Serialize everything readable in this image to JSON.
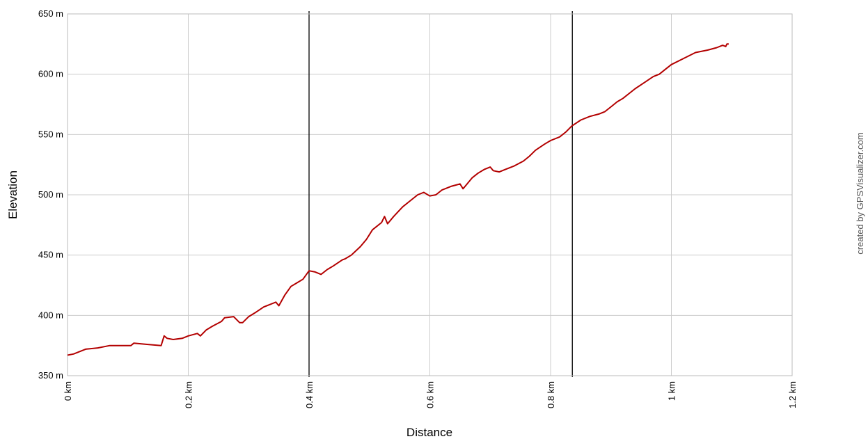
{
  "chart_data": {
    "type": "line",
    "xlabel": "Distance",
    "ylabel": "Elevation",
    "xlim": [
      0,
      1.2
    ],
    "ylim": [
      350,
      650
    ],
    "grid": true,
    "x_ticks": [
      {
        "value": 0,
        "label": "0 km"
      },
      {
        "value": 0.2,
        "label": "0.2 km"
      },
      {
        "value": 0.4,
        "label": "0.4 km"
      },
      {
        "value": 0.6,
        "label": "0.6 km"
      },
      {
        "value": 0.8,
        "label": "0.8 km"
      },
      {
        "value": 1.0,
        "label": "1 km"
      },
      {
        "value": 1.2,
        "label": "1.2 km"
      }
    ],
    "y_ticks": [
      {
        "value": 350,
        "label": "350 m"
      },
      {
        "value": 400,
        "label": "400 m"
      },
      {
        "value": 450,
        "label": "450 m"
      },
      {
        "value": 500,
        "label": "500 m"
      },
      {
        "value": 550,
        "label": "550 m"
      },
      {
        "value": 600,
        "label": "600 m"
      },
      {
        "value": 650,
        "label": "650 m"
      }
    ],
    "markers_x": [
      0.4,
      0.836
    ],
    "series": [
      {
        "color": "#b30000",
        "x": [
          0,
          0.01,
          0.03,
          0.05,
          0.07,
          0.09,
          0.105,
          0.11,
          0.13,
          0.155,
          0.16,
          0.165,
          0.175,
          0.19,
          0.2,
          0.215,
          0.22,
          0.23,
          0.24,
          0.255,
          0.26,
          0.275,
          0.285,
          0.29,
          0.3,
          0.31,
          0.325,
          0.34,
          0.345,
          0.35,
          0.36,
          0.37,
          0.38,
          0.39,
          0.4,
          0.41,
          0.42,
          0.43,
          0.44,
          0.455,
          0.46,
          0.47,
          0.485,
          0.495,
          0.505,
          0.52,
          0.525,
          0.53,
          0.54,
          0.555,
          0.565,
          0.58,
          0.59,
          0.6,
          0.61,
          0.62,
          0.635,
          0.65,
          0.655,
          0.66,
          0.67,
          0.68,
          0.69,
          0.7,
          0.705,
          0.715,
          0.725,
          0.74,
          0.755,
          0.765,
          0.775,
          0.79,
          0.8,
          0.815,
          0.825,
          0.835,
          0.85,
          0.865,
          0.88,
          0.89,
          0.9,
          0.91,
          0.92,
          0.93,
          0.94,
          0.955,
          0.97,
          0.98,
          0.99,
          1.0,
          1.02,
          1.04,
          1.06,
          1.075,
          1.085,
          1.09,
          1.092,
          1.095
        ],
        "values": [
          367,
          368,
          372,
          373,
          375,
          375,
          375,
          377,
          376,
          375,
          383,
          381,
          380,
          381,
          383,
          385,
          383,
          388,
          391,
          395,
          398,
          399,
          394,
          394,
          399,
          402,
          407,
          410,
          411,
          408,
          417,
          424,
          427,
          430,
          437,
          436,
          434,
          438,
          441,
          446,
          447,
          450,
          457,
          463,
          471,
          477,
          482,
          476,
          482,
          490,
          494,
          500,
          502,
          499,
          500,
          504,
          507,
          509,
          505,
          508,
          514,
          518,
          521,
          523,
          520,
          519,
          521,
          524,
          528,
          532,
          537,
          542,
          545,
          548,
          552,
          557,
          562,
          565,
          567,
          569,
          573,
          577,
          580,
          584,
          588,
          593,
          598,
          600,
          604,
          608,
          613,
          618,
          620,
          622,
          624,
          623,
          625,
          625
        ]
      }
    ]
  },
  "credit_text": "created by GPSVisualizer.com"
}
